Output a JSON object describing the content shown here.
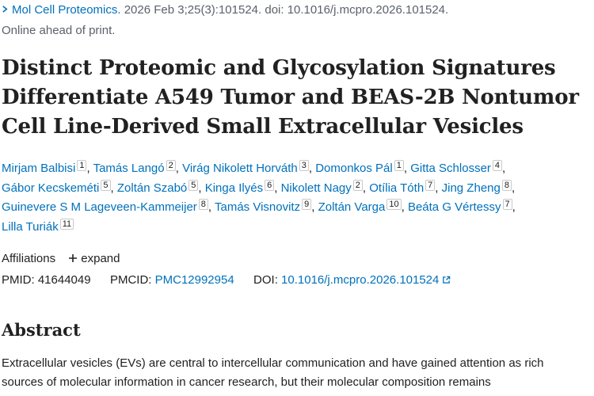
{
  "citation": {
    "journal": "Mol Cell Proteomics.",
    "details": "2026 Feb 3;25(3):101524. doi: 10.1016/j.mcpro.2026.101524."
  },
  "status": "Online ahead of print.",
  "title": "Distinct Proteomic and Glycosylation Signatures Differentiate A549 Tumor and BEAS-2B Nontumor Cell Line-Derived Small Extracellular Vesicles",
  "authors": [
    {
      "name": "Mirjam Balbisi",
      "aff": "1"
    },
    {
      "name": "Tamás Langó",
      "aff": "2"
    },
    {
      "name": "Virág Nikolett Horváth",
      "aff": "3"
    },
    {
      "name": "Domonkos Pál",
      "aff": "1"
    },
    {
      "name": "Gitta Schlosser",
      "aff": "4"
    },
    {
      "name": "Gábor Kecskeméti",
      "aff": "5"
    },
    {
      "name": "Zoltán Szabó",
      "aff": "5"
    },
    {
      "name": "Kinga Ilyés",
      "aff": "6"
    },
    {
      "name": "Nikolett Nagy",
      "aff": "2"
    },
    {
      "name": "Otília Tóth",
      "aff": "7"
    },
    {
      "name": "Jing Zheng",
      "aff": "8"
    },
    {
      "name": "Guinevere S M Lageveen-Kammeijer",
      "aff": "8"
    },
    {
      "name": "Tamás Visnovitz",
      "aff": "9"
    },
    {
      "name": "Zoltán Varga",
      "aff": "10"
    },
    {
      "name": "Beáta G Vértessy",
      "aff": "7"
    },
    {
      "name": "Lilla Turiák",
      "aff": "11"
    }
  ],
  "affiliations": {
    "label": "Affiliations",
    "expand": "expand"
  },
  "ids": {
    "pmid_label": "PMID:",
    "pmid": "41644049",
    "pmcid_label": "PMCID:",
    "pmcid": "PMC12992954",
    "doi_label": "DOI:",
    "doi": "10.1016/j.mcpro.2026.101524"
  },
  "abstract": {
    "heading": "Abstract",
    "lines": [
      "Extracellular vesicles (EVs) are central to intercellular communication and have gained attention as rich",
      "sources of molecular information in cancer research, but their molecular composition remains"
    ]
  },
  "colors": {
    "link": "#0071bc",
    "text": "#212121",
    "muted": "#5b616b"
  },
  "icons": [
    "chevron-right-icon",
    "plus-icon",
    "external-link-icon"
  ]
}
